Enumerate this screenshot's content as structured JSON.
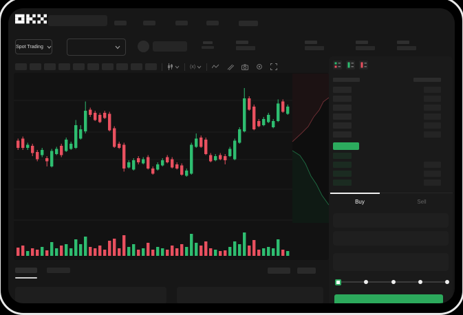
{
  "app": {
    "brand": "OKX"
  },
  "ticker_bar": {
    "market_selector_label": "Spot Trading"
  },
  "toolbar": {
    "timeframe_placeholder_count": 10,
    "icons": [
      "candlestick-type-icon",
      "chevron-down-icon",
      "interval-icon",
      "chevron-down-icon",
      "indicator-fx-icon",
      "chevron-down-icon",
      "line-icon",
      "draw-icon",
      "camera-icon",
      "settings-gear-icon",
      "fullscreen-icon"
    ]
  },
  "order_book": {
    "mode_icons": [
      "book-both-icon",
      "book-bids-icon",
      "book-asks-icon"
    ],
    "ask_rows": [
      true,
      true,
      true,
      true,
      true,
      true
    ],
    "bid_rows": [
      false,
      true,
      true,
      true
    ],
    "price_bar_color": "#2cab5e"
  },
  "trade_panel": {
    "tabs": {
      "buy_label": "Buy",
      "sell_label": "Sell",
      "active": "Buy"
    },
    "slider": {
      "stops": 5,
      "active_index": 0
    },
    "submit_color": "#2ca95c"
  },
  "colors": {
    "up": "#2ebd70",
    "down": "#e8505f",
    "accent_green": "#2ca95c",
    "background": "#171717",
    "chart_background": "#121212"
  },
  "chart_data": {
    "type": "candlestick",
    "title": "",
    "note": "wireframe chart, no axis labels visible; values normalized 0-100 from top of price pane",
    "grid": true,
    "depth_overlay": true,
    "colors": {
      "up": "#2ebd70",
      "down": "#e8505f"
    },
    "candles": [
      [
        0,
        63,
        65,
        72,
        74
      ],
      [
        0,
        61,
        63,
        72,
        74
      ],
      [
        1,
        67,
        69,
        72,
        74
      ],
      [
        0,
        68,
        70,
        77,
        80
      ],
      [
        0,
        74,
        76,
        83,
        85
      ],
      [
        1,
        72,
        74,
        79,
        81
      ],
      [
        0,
        80,
        82,
        85,
        90
      ],
      [
        1,
        73,
        75,
        90,
        91
      ],
      [
        1,
        71,
        73,
        78,
        79
      ],
      [
        0,
        68,
        70,
        79,
        81
      ],
      [
        1,
        62,
        64,
        75,
        76
      ],
      [
        1,
        66,
        68,
        73,
        74
      ],
      [
        1,
        45,
        50,
        72,
        73
      ],
      [
        1,
        50,
        54,
        63,
        64
      ],
      [
        1,
        27,
        36,
        56,
        58
      ],
      [
        0,
        33,
        35,
        40,
        42
      ],
      [
        0,
        36,
        38,
        45,
        46
      ],
      [
        0,
        38,
        40,
        47,
        48
      ],
      [
        0,
        36,
        38,
        43,
        44
      ],
      [
        0,
        37,
        39,
        55,
        56
      ],
      [
        0,
        51,
        53,
        71,
        72
      ],
      [
        0,
        66,
        68,
        72,
        73
      ],
      [
        0,
        67,
        69,
        92,
        95
      ],
      [
        1,
        84,
        86,
        91,
        92
      ],
      [
        1,
        82,
        84,
        93,
        94
      ],
      [
        0,
        80,
        82,
        86,
        88
      ],
      [
        1,
        81,
        83,
        87,
        88
      ],
      [
        0,
        79,
        81,
        92,
        93
      ],
      [
        0,
        90,
        92,
        97,
        98
      ],
      [
        1,
        86,
        88,
        93,
        94
      ],
      [
        1,
        82,
        84,
        89,
        90
      ],
      [
        0,
        79,
        81,
        86,
        87
      ],
      [
        0,
        81,
        83,
        91,
        92
      ],
      [
        0,
        86,
        88,
        92,
        93
      ],
      [
        0,
        87,
        89,
        98,
        99
      ],
      [
        1,
        92,
        94,
        99,
        100
      ],
      [
        1,
        67,
        69,
        97,
        98
      ],
      [
        1,
        58,
        63,
        71,
        72
      ],
      [
        0,
        60,
        62,
        71,
        72
      ],
      [
        0,
        62,
        64,
        78,
        79
      ],
      [
        0,
        77,
        79,
        85,
        86
      ],
      [
        1,
        78,
        80,
        84,
        85
      ],
      [
        0,
        77,
        79,
        83,
        84
      ],
      [
        0,
        78,
        80,
        84,
        88
      ],
      [
        1,
        71,
        73,
        80,
        81
      ],
      [
        1,
        63,
        65,
        83,
        84
      ],
      [
        1,
        52,
        54,
        67,
        68
      ],
      [
        1,
        14,
        24,
        56,
        57
      ],
      [
        0,
        22,
        24,
        35,
        36
      ],
      [
        0,
        30,
        32,
        54,
        55
      ],
      [
        0,
        44,
        46,
        51,
        52
      ],
      [
        1,
        42,
        44,
        50,
        51
      ],
      [
        1,
        38,
        40,
        47,
        48
      ],
      [
        1,
        44,
        46,
        52,
        53
      ],
      [
        1,
        25,
        29,
        46,
        47
      ],
      [
        0,
        25,
        27,
        37,
        38
      ],
      [
        1,
        30,
        32,
        39,
        40
      ]
    ],
    "volume": [
      12,
      15,
      7,
      11,
      9,
      13,
      8,
      20,
      11,
      15,
      17,
      11,
      24,
      17,
      28,
      13,
      11,
      15,
      9,
      22,
      25,
      11,
      30,
      13,
      17,
      9,
      11,
      19,
      9,
      13,
      11,
      9,
      15,
      11,
      17,
      13,
      32,
      19,
      15,
      21,
      11,
      9,
      7,
      8,
      13,
      21,
      17,
      34,
      15,
      23,
      9,
      11,
      13,
      11,
      24,
      9,
      7
    ]
  }
}
